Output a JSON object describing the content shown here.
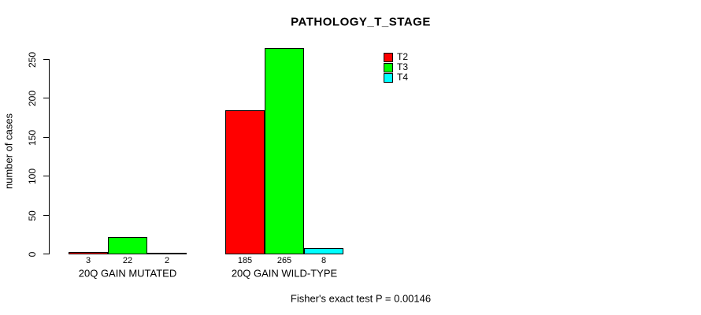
{
  "chart_data": {
    "type": "bar",
    "title": "PATHOLOGY_T_STAGE",
    "ylabel": "number of cases",
    "xlabel": "",
    "footer": "Fisher's exact test P = 0.00146",
    "groups": [
      "20Q GAIN MUTATED",
      "20Q GAIN WILD-TYPE"
    ],
    "series": [
      {
        "name": "T2",
        "color": "#ff0000",
        "values": [
          3,
          185
        ]
      },
      {
        "name": "T3",
        "color": "#00ff00",
        "values": [
          22,
          265
        ]
      },
      {
        "name": "T4",
        "color": "#00ffff",
        "values": [
          2,
          8
        ]
      }
    ],
    "yticks": [
      0,
      50,
      100,
      150,
      200,
      250
    ],
    "ylim": [
      0,
      250
    ],
    "grid": false,
    "legend_position": "top-right",
    "bar_border_color": "#000000",
    "background_color": "#ffffff"
  }
}
